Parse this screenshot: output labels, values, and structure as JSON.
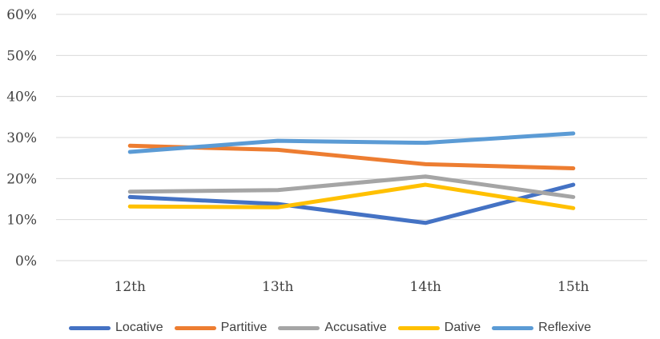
{
  "chart_data": {
    "type": "line",
    "categories": [
      "12th",
      "13th",
      "14th",
      "15th"
    ],
    "yticks": [
      "0%",
      "10%",
      "20%",
      "30%",
      "40%",
      "50%",
      "60%"
    ],
    "ylim": [
      0,
      60
    ],
    "grid": true,
    "legend_position": "bottom",
    "series": [
      {
        "name": "Locative",
        "color": "#4472C4",
        "values": [
          15.5,
          13.8,
          9.2,
          18.5
        ]
      },
      {
        "name": "Partitive",
        "color": "#ED7D31",
        "values": [
          28.0,
          27.0,
          23.5,
          22.5
        ]
      },
      {
        "name": "Accusative",
        "color": "#A5A5A5",
        "values": [
          16.8,
          17.2,
          20.5,
          15.5
        ]
      },
      {
        "name": "Dative",
        "color": "#FFC000",
        "values": [
          13.2,
          13.0,
          18.5,
          12.8
        ]
      },
      {
        "name": "Reflexive",
        "color": "#5B9BD5",
        "values": [
          26.5,
          29.2,
          28.7,
          31.0
        ]
      }
    ]
  }
}
